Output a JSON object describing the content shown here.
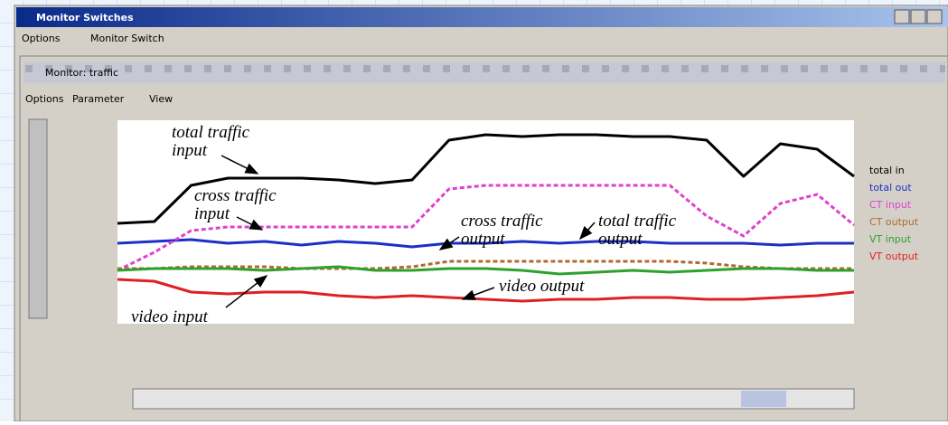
{
  "window": {
    "title": "Monitor Switches",
    "menu": [
      "Options",
      "Monitor Switch"
    ]
  },
  "inner_window": {
    "title": "Monitor: traffic",
    "menu": [
      "Options",
      "Parameter",
      "View"
    ]
  },
  "chart_data": {
    "type": "line",
    "x": [
      0,
      1,
      2,
      3,
      4,
      5,
      6,
      7,
      8,
      9,
      10,
      11,
      12,
      13,
      14,
      15,
      16,
      17,
      18,
      19,
      20
    ],
    "xlim": [
      0,
      20
    ],
    "ylim": [
      0,
      1
    ],
    "series": [
      {
        "name": "total in",
        "color": "#000000",
        "dash": false,
        "values": [
          0.5,
          0.51,
          0.71,
          0.75,
          0.75,
          0.75,
          0.74,
          0.72,
          0.74,
          0.96,
          0.99,
          0.98,
          0.99,
          0.99,
          0.98,
          0.98,
          0.96,
          0.76,
          0.94,
          0.91,
          0.76
        ]
      },
      {
        "name": "total out",
        "color": "#1c2fc8",
        "dash": false,
        "values": [
          0.39,
          0.4,
          0.41,
          0.39,
          0.4,
          0.38,
          0.4,
          0.39,
          0.37,
          0.39,
          0.39,
          0.4,
          0.39,
          0.4,
          0.4,
          0.39,
          0.39,
          0.39,
          0.38,
          0.39,
          0.39
        ]
      },
      {
        "name": "CT input",
        "color": "#e040d0",
        "dash": true,
        "values": [
          0.24,
          0.34,
          0.46,
          0.48,
          0.48,
          0.48,
          0.48,
          0.48,
          0.48,
          0.69,
          0.71,
          0.71,
          0.71,
          0.71,
          0.71,
          0.71,
          0.54,
          0.43,
          0.61,
          0.66,
          0.49
        ]
      },
      {
        "name": "CT output",
        "color": "#b06a30",
        "dash": true,
        "values": [
          0.25,
          0.25,
          0.26,
          0.26,
          0.26,
          0.25,
          0.25,
          0.25,
          0.26,
          0.29,
          0.29,
          0.29,
          0.29,
          0.29,
          0.29,
          0.29,
          0.28,
          0.26,
          0.25,
          0.25,
          0.25
        ]
      },
      {
        "name": "VT input",
        "color": "#2ea02e",
        "dash": false,
        "values": [
          0.24,
          0.25,
          0.25,
          0.25,
          0.24,
          0.25,
          0.26,
          0.24,
          0.24,
          0.25,
          0.25,
          0.24,
          0.22,
          0.23,
          0.24,
          0.23,
          0.24,
          0.25,
          0.25,
          0.24,
          0.24
        ]
      },
      {
        "name": "VT output",
        "color": "#e02020",
        "dash": false,
        "values": [
          0.19,
          0.18,
          0.12,
          0.11,
          0.12,
          0.12,
          0.1,
          0.09,
          0.1,
          0.09,
          0.08,
          0.07,
          0.08,
          0.08,
          0.09,
          0.09,
          0.08,
          0.08,
          0.09,
          0.1,
          0.12
        ]
      }
    ],
    "annotations": [
      {
        "lines": [
          "total traffic",
          "input"
        ]
      },
      {
        "lines": [
          "cross traffic",
          "input"
        ]
      },
      {
        "lines": [
          "cross traffic",
          "output"
        ]
      },
      {
        "lines": [
          "total traffic",
          "output"
        ]
      },
      {
        "lines": [
          "video output"
        ]
      },
      {
        "lines": [
          "video input"
        ]
      }
    ]
  }
}
